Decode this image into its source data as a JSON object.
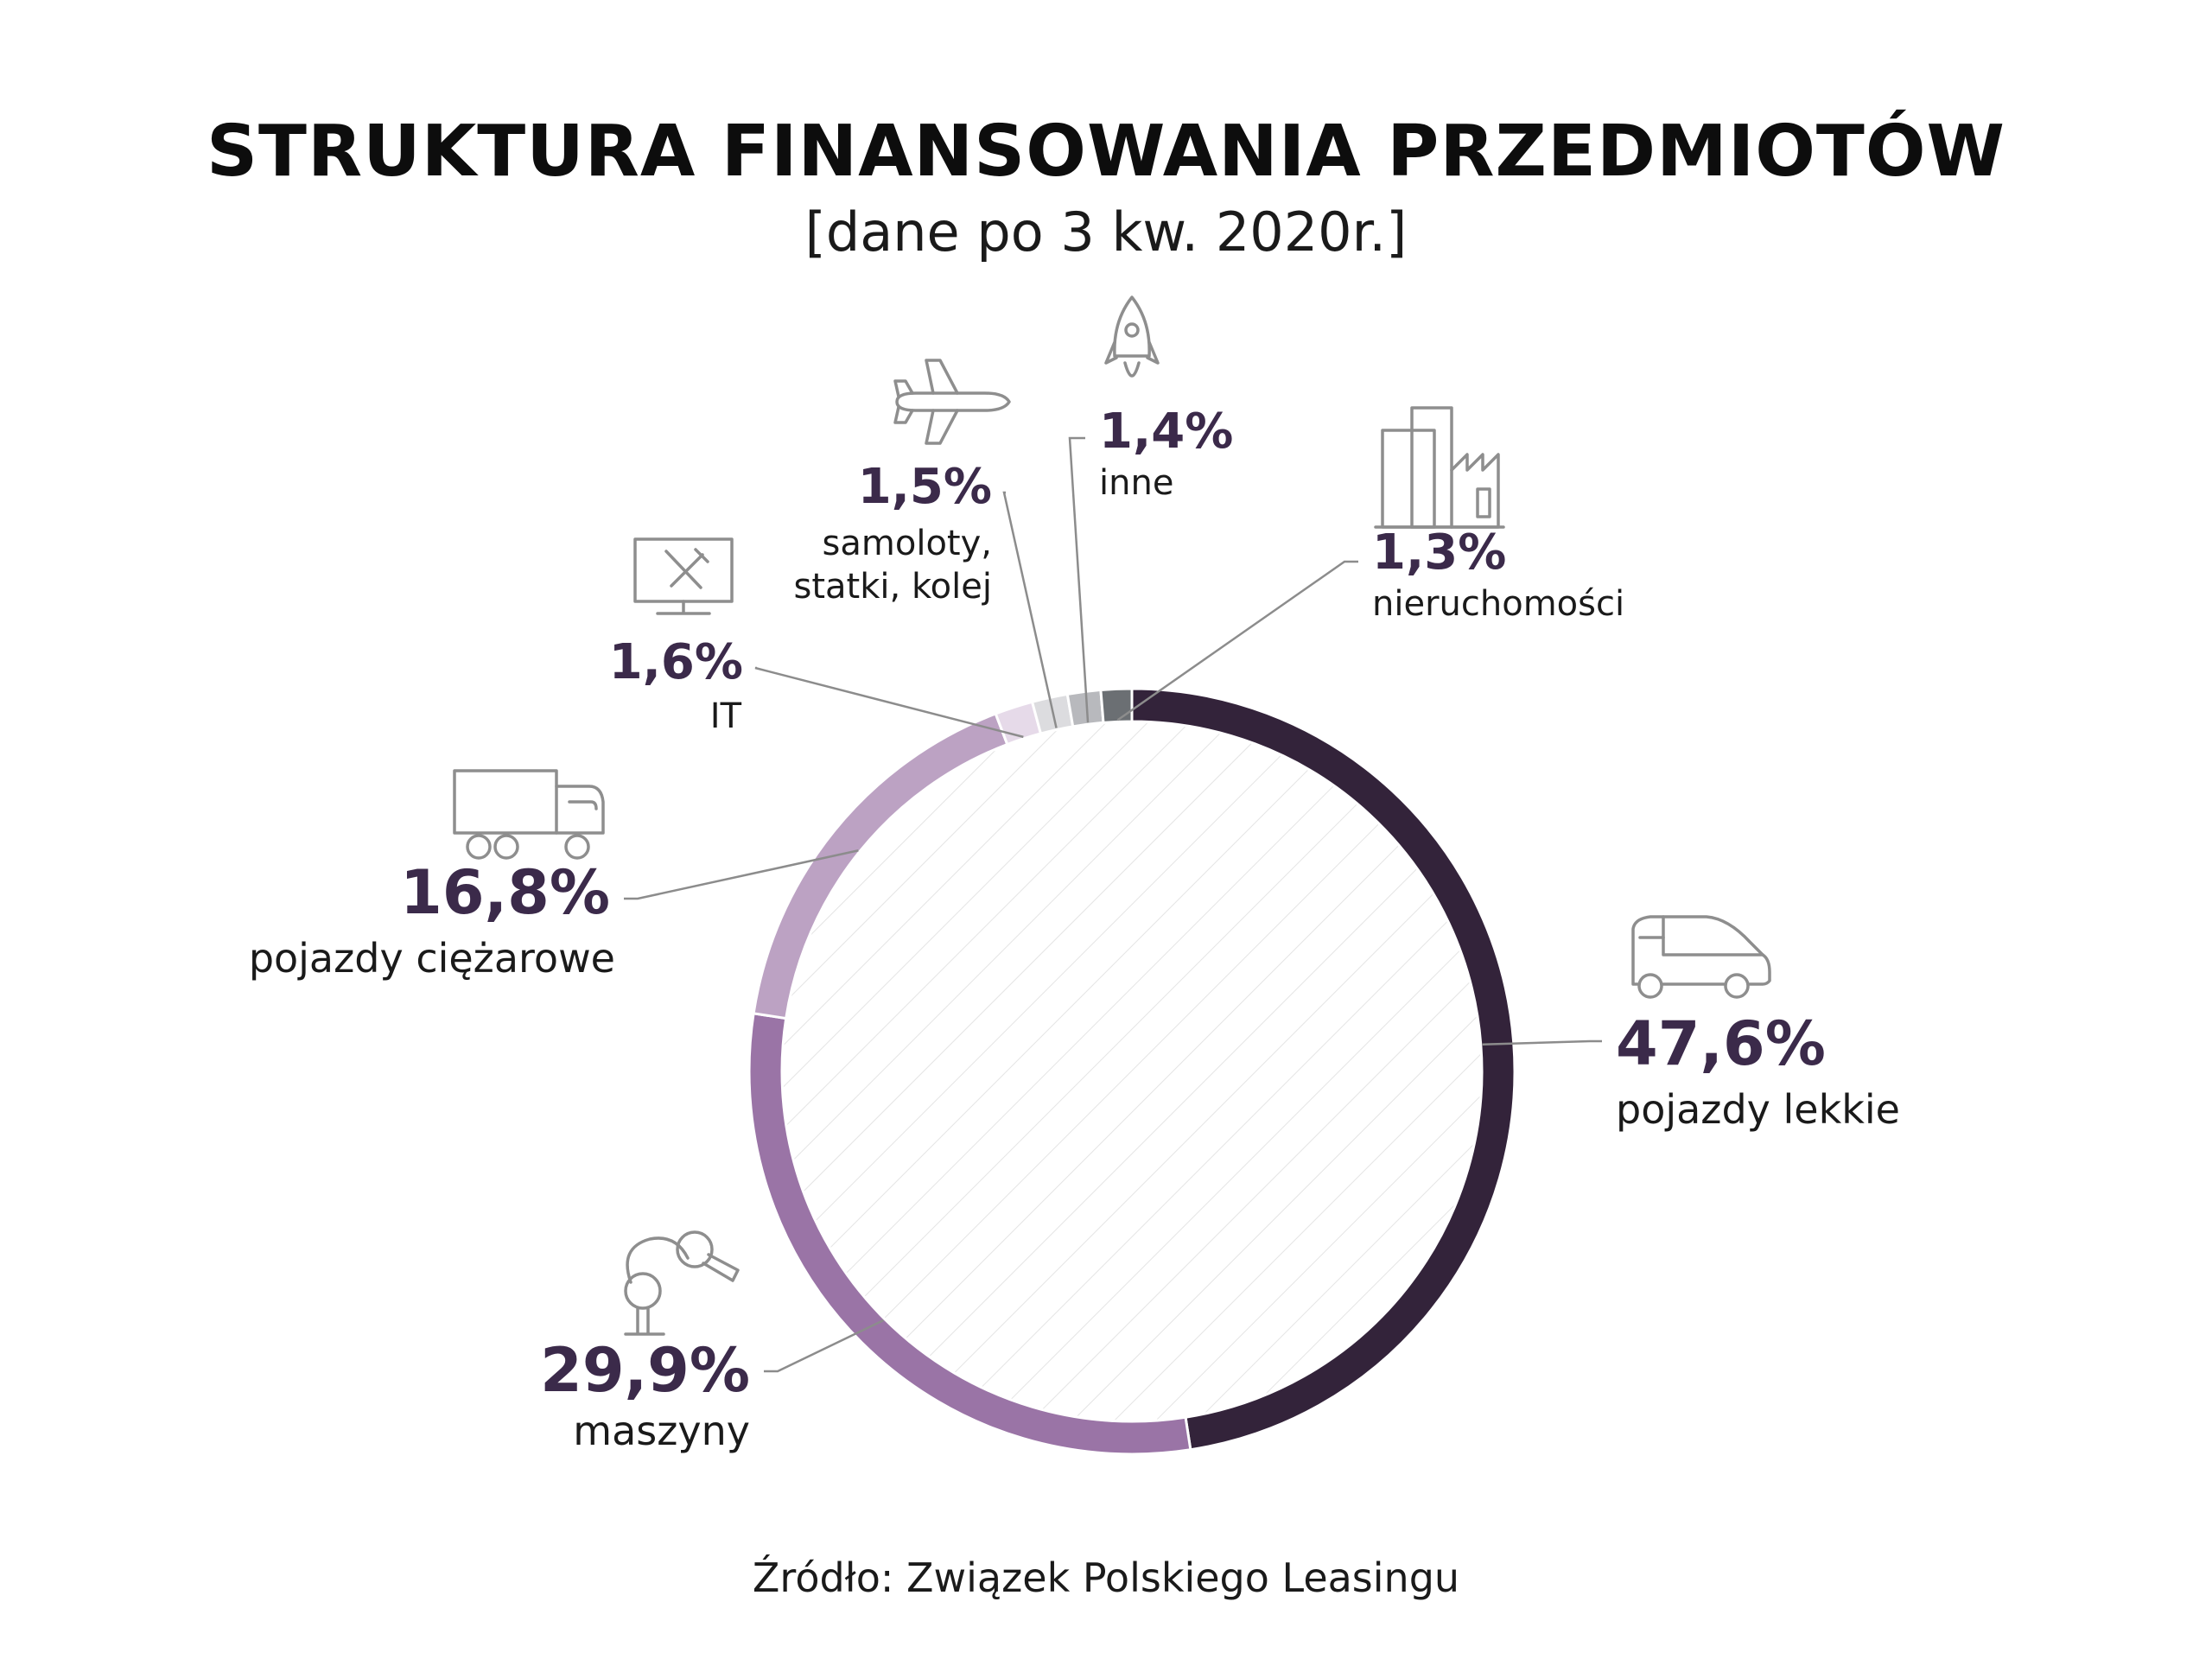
{
  "title": "STRUKTURA FINANSOWANIA PRZEDMIOTÓW",
  "subtitle": "[dane po 3 kw. 2020r.]",
  "source": "Źródło: Związek Polskiego Leasingu",
  "chart_data": {
    "type": "pie",
    "donut": true,
    "title": "STRUKTURA FINANSOWANIA PRZEDMIOTÓW",
    "subtitle": "[dane po 3 kw. 2020r.]",
    "slices": [
      {
        "value": 47.6,
        "value_label": "47,6%",
        "label_lines": [
          "pojazdy lekkie"
        ],
        "color": "#33233a",
        "icon": "car-icon"
      },
      {
        "value": 29.9,
        "value_label": "29,9%",
        "label_lines": [
          "maszyny"
        ],
        "color": "#9a74a6",
        "icon": "robot-arm-icon"
      },
      {
        "value": 16.8,
        "value_label": "16,8%",
        "label_lines": [
          "pojazdy ciężarowe"
        ],
        "color": "#bca2c3",
        "icon": "truck-icon"
      },
      {
        "value": 1.6,
        "value_label": "1,6%",
        "label_lines": [
          "IT"
        ],
        "color": "#e6dae9",
        "icon": "computer-tools-icon"
      },
      {
        "value": 1.5,
        "value_label": "1,5%",
        "label_lines": [
          "samoloty,",
          "statki, kolej"
        ],
        "color": "#dcdcdf",
        "icon": "airplane-icon"
      },
      {
        "value": 1.4,
        "value_label": "1,4%",
        "label_lines": [
          "inne"
        ],
        "color": "#b8b9bd",
        "icon": "rocket-icon"
      },
      {
        "value": 1.3,
        "value_label": "1,3%",
        "label_lines": [
          "nieruchomości"
        ],
        "color": "#6b6f73",
        "icon": "buildings-icon"
      }
    ]
  }
}
